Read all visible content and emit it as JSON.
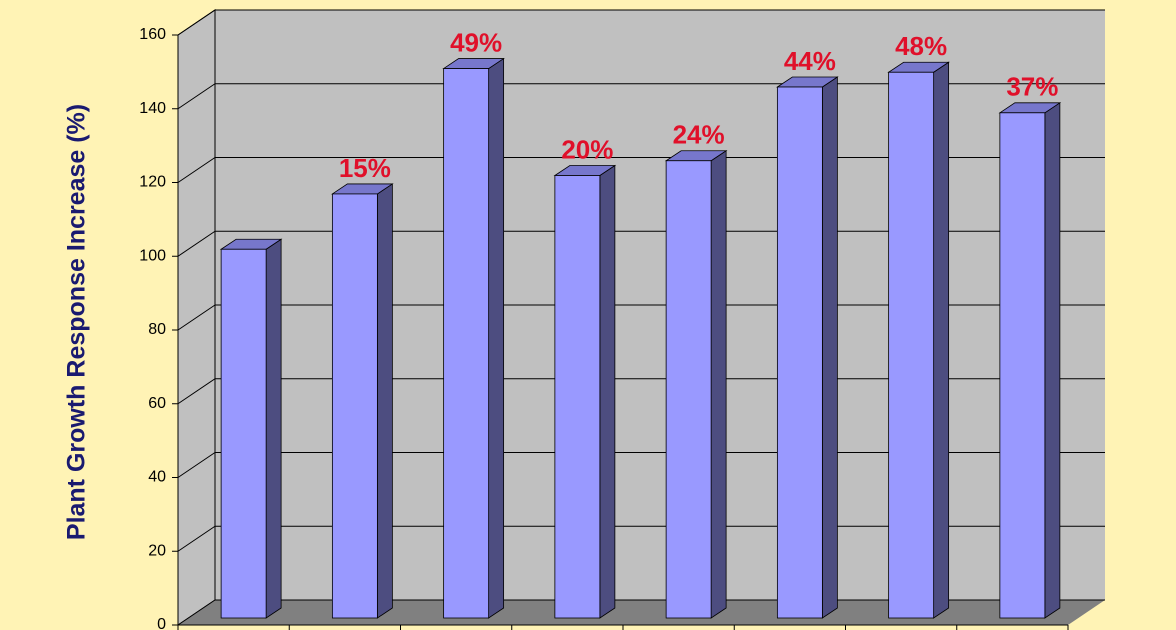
{
  "chart_data": {
    "type": "bar",
    "y_label": "Plant Growth Response Increase (%)",
    "categories": [
      null,
      null,
      null,
      null,
      null,
      null,
      null,
      null
    ],
    "values": [
      100,
      115,
      149,
      120,
      124,
      144,
      148,
      137
    ],
    "annotations": [
      null,
      "15%",
      "49%",
      "20%",
      "24%",
      "44%",
      "48%",
      "37%"
    ],
    "color": "#9999ff",
    "ylim": [
      0,
      160
    ],
    "yticks": [
      0,
      20,
      40,
      60,
      80,
      100,
      120,
      140,
      160
    ],
    "grid": true
  }
}
